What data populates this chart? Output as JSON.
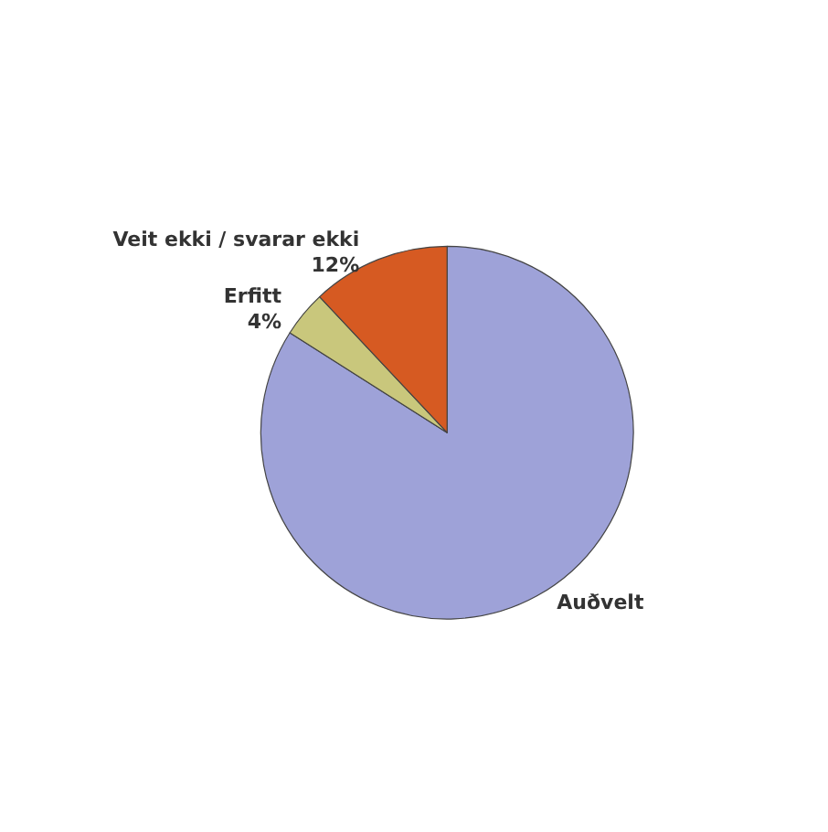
{
  "chart_data": {
    "type": "pie",
    "categories": [
      "Auðvelt",
      "Erfitt",
      "Veit ekki / svarar ekki"
    ],
    "values": [
      84,
      4,
      12
    ],
    "colors": [
      "#9ea2d8",
      "#c9c77c",
      "#d65a22"
    ],
    "value_labels": [
      null,
      "4%",
      "12%"
    ],
    "legend": false
  }
}
